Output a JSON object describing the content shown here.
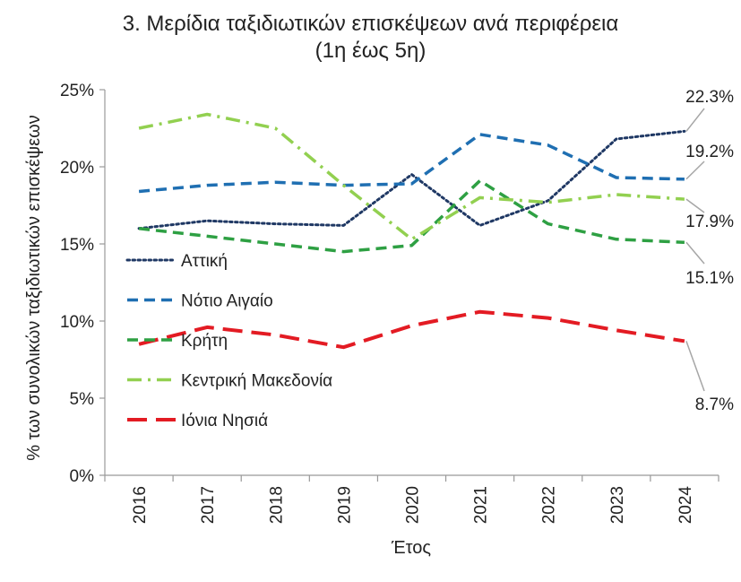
{
  "chart_data": {
    "type": "line",
    "title": "3. Μερίδια ταξιδιωτικών επισκέψεων ανά περιφέρεια",
    "subtitle": "(1η έως 5η)",
    "xlabel": "Έτος",
    "ylabel": "% των συνολικών ταξιδιωτικών επισκέψεων",
    "categories": [
      "2016",
      "2017",
      "2018",
      "2019",
      "2020",
      "2021",
      "2022",
      "2023",
      "2024"
    ],
    "ylim": [
      0,
      25
    ],
    "yticks": [
      "0%",
      "5%",
      "10%",
      "15%",
      "20%",
      "25%"
    ],
    "legend_position": "left",
    "series": [
      {
        "name": "Αττική",
        "color": "#1f3864",
        "style": "dotted",
        "values": [
          16.0,
          16.5,
          16.3,
          16.2,
          19.5,
          16.2,
          17.8,
          21.8,
          22.3
        ],
        "end_label": "22.3%"
      },
      {
        "name": "Νότιο Αιγαίο",
        "color": "#1f6fb2",
        "style": "dashed",
        "values": [
          18.4,
          18.8,
          19.0,
          18.8,
          18.9,
          22.1,
          21.4,
          19.3,
          19.2
        ],
        "end_label": "19.2%"
      },
      {
        "name": "Κρήτη",
        "color": "#2ea043",
        "style": "dashed",
        "values": [
          16.0,
          15.5,
          15.0,
          14.5,
          14.9,
          19.1,
          16.3,
          15.3,
          15.1
        ],
        "end_label": "15.1%"
      },
      {
        "name": "Κεντρική Μακεδονία",
        "color": "#92d050",
        "style": "dashdot",
        "values": [
          22.5,
          23.4,
          22.5,
          18.8,
          15.3,
          18.0,
          17.7,
          18.2,
          17.9
        ],
        "end_label": "17.9%"
      },
      {
        "name": "Ιόνια Νησιά",
        "color": "#e31b23",
        "style": "longdash",
        "values": [
          8.5,
          9.6,
          9.1,
          8.3,
          9.7,
          10.6,
          10.2,
          9.4,
          8.7
        ],
        "end_label": "8.7%"
      }
    ]
  }
}
